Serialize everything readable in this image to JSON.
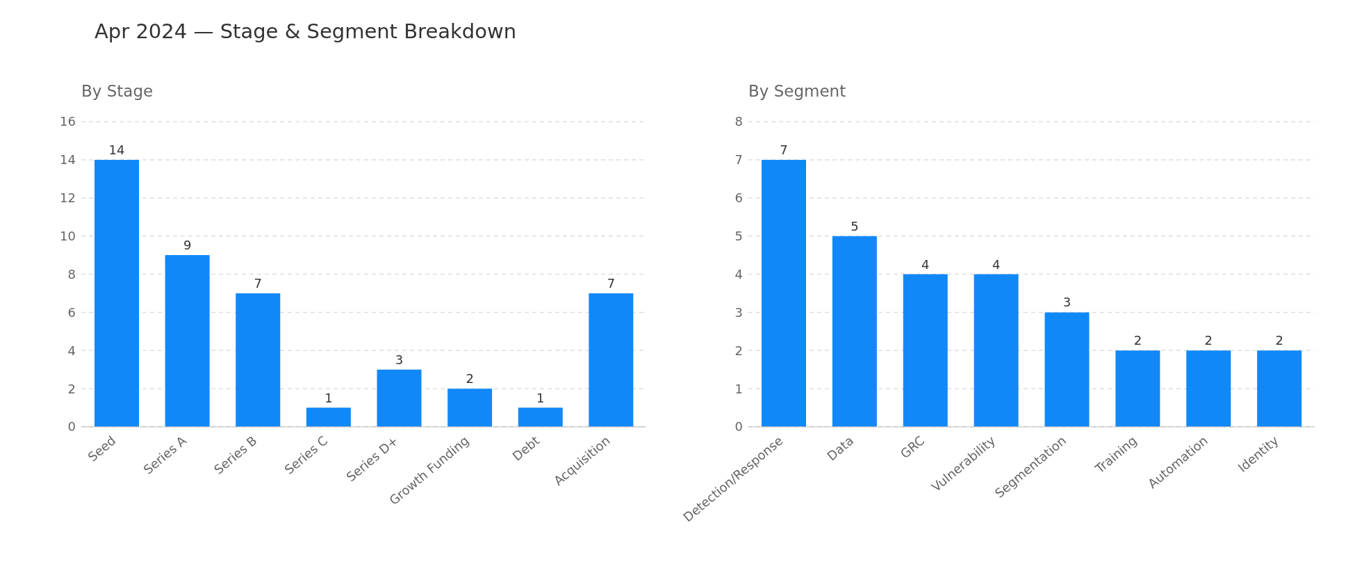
{
  "chart_data": [
    {
      "type": "bar",
      "title": "Apr 2024 — Stage & Segment Breakdown",
      "subtitle": "By Stage",
      "categories": [
        "Seed",
        "Series A",
        "Series B",
        "Series C",
        "Series D+",
        "Growth Funding",
        "Debt",
        "Acquisition"
      ],
      "values": [
        14,
        9,
        7,
        1,
        3,
        2,
        1,
        7
      ],
      "color": "#1188f8",
      "ylim": [
        0,
        16
      ],
      "yticks": [
        0,
        2,
        4,
        6,
        8,
        10,
        12,
        14,
        16
      ],
      "grid": "y",
      "data_labels": true,
      "legend": false
    },
    {
      "type": "bar",
      "subtitle": "By Segment",
      "categories": [
        "Detection/Response",
        "Data",
        "GRC",
        "Vulnerability",
        "Segmentation",
        "Training",
        "Automation",
        "Identity"
      ],
      "values": [
        7,
        5,
        4,
        4,
        3,
        2,
        2,
        2
      ],
      "color": "#1188f8",
      "ylim": [
        0,
        8
      ],
      "yticks": [
        0,
        1,
        2,
        3,
        4,
        5,
        6,
        7,
        8
      ],
      "grid": "y",
      "data_labels": true,
      "legend": false
    }
  ]
}
